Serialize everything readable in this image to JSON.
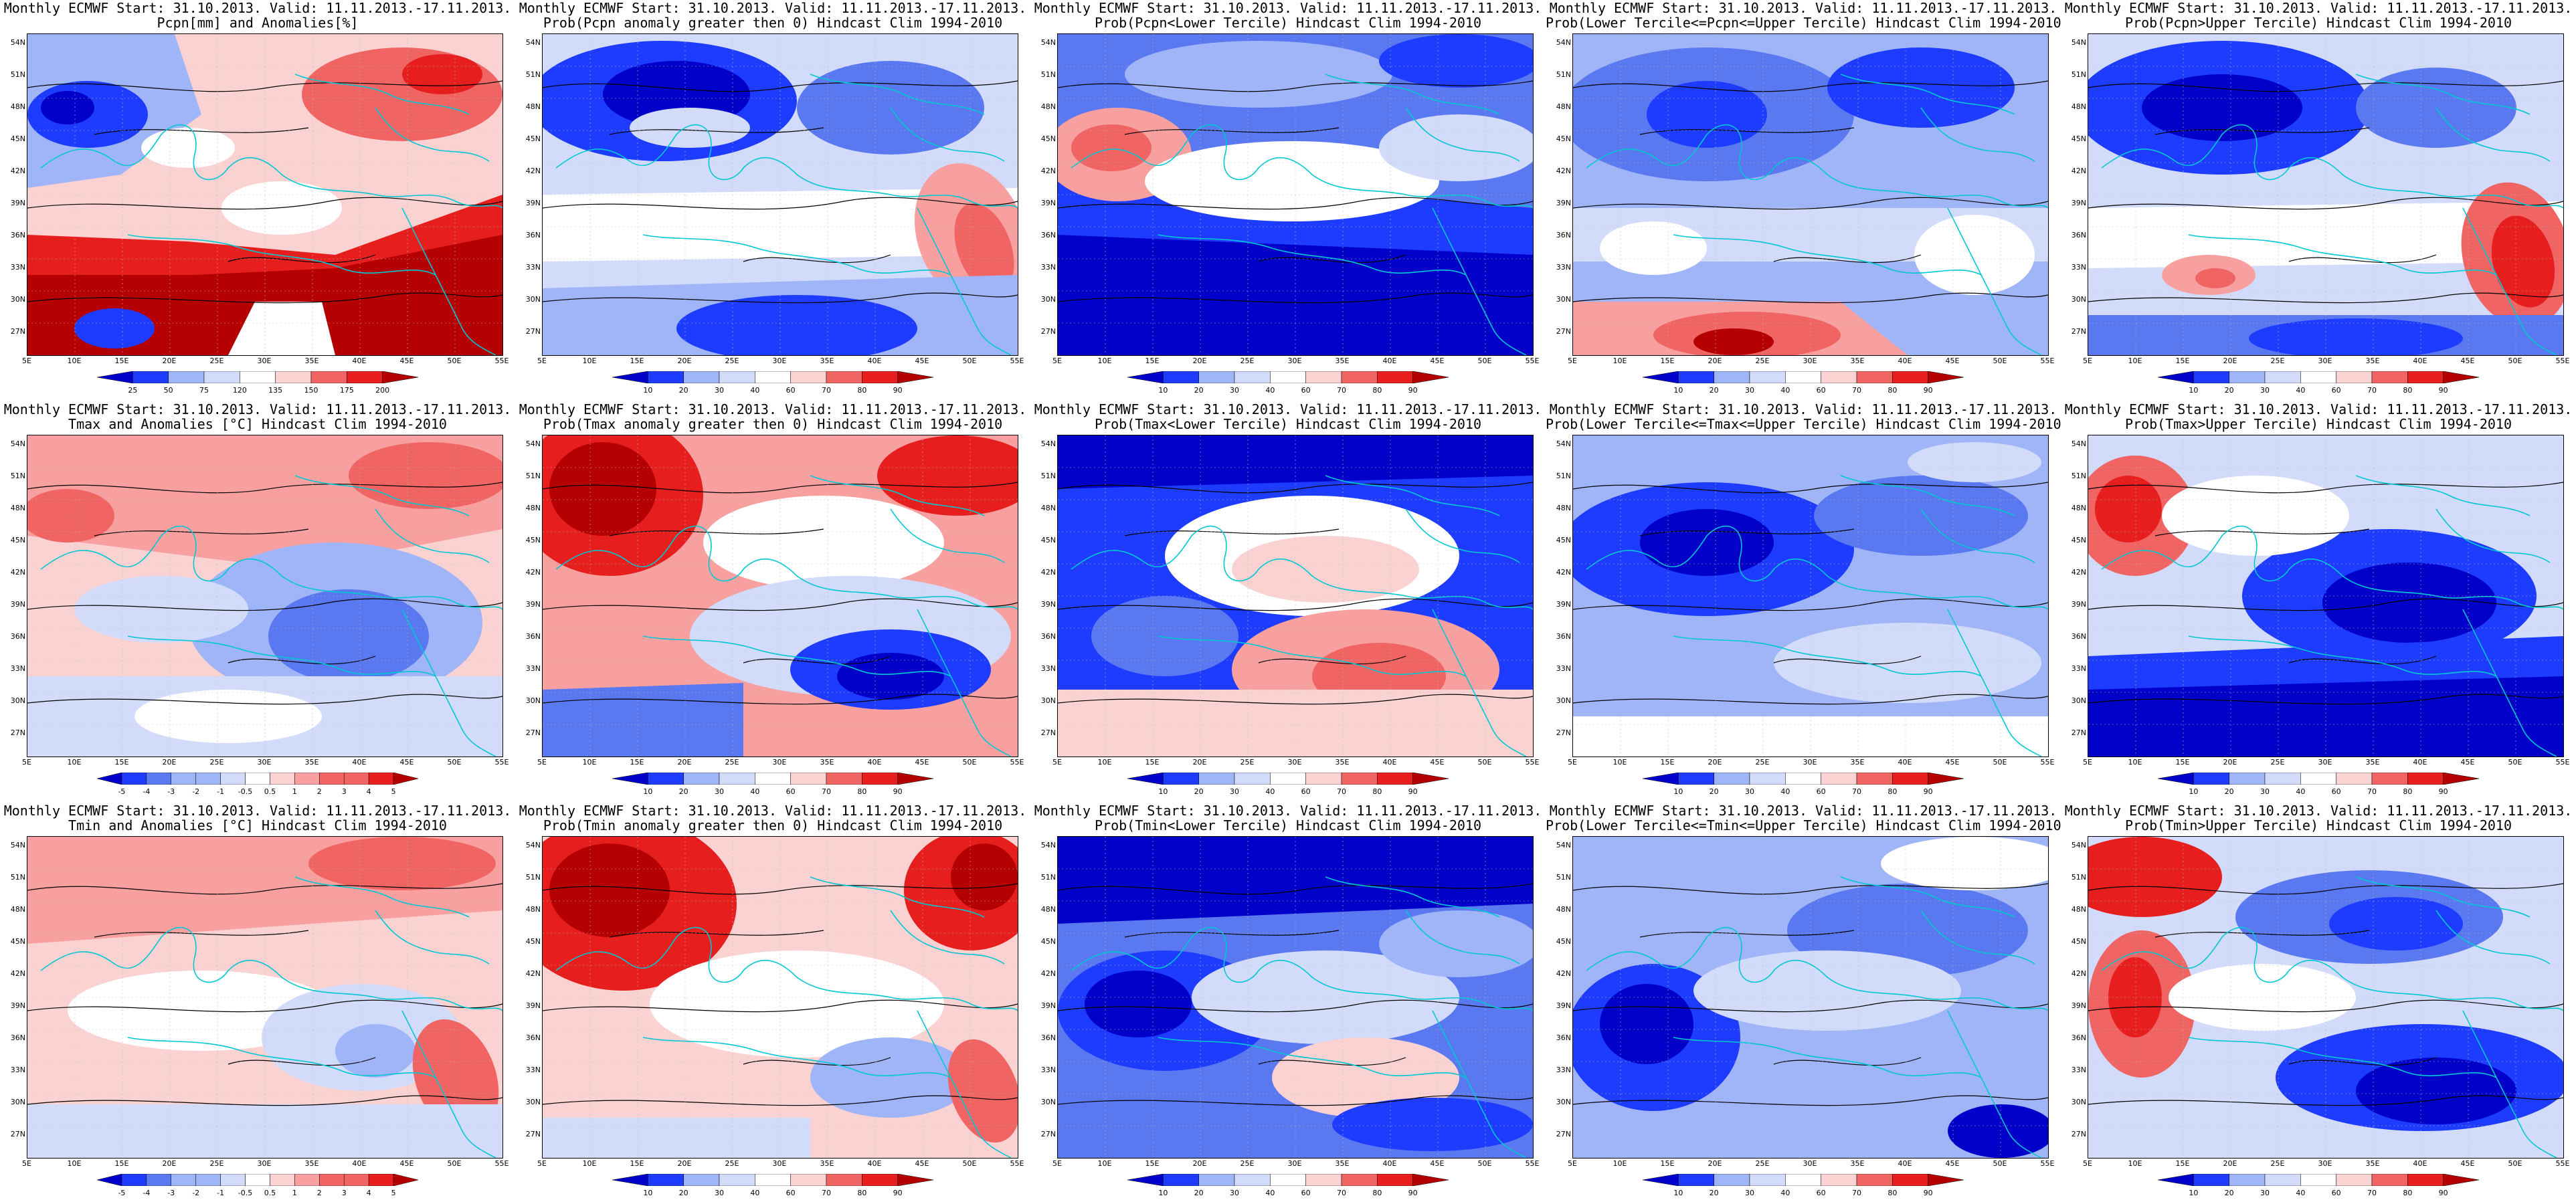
{
  "axes": {
    "lat_labels": [
      "54N",
      "51N",
      "48N",
      "45N",
      "42N",
      "39N",
      "36N",
      "33N",
      "30N",
      "27N"
    ],
    "lon_labels": [
      "5E",
      "10E",
      "15E",
      "20E",
      "25E",
      "30E",
      "35E",
      "40E",
      "45E",
      "50E",
      "55E"
    ],
    "lat_range": [
      25.5,
      55
    ],
    "lon_range": [
      5,
      55
    ]
  },
  "colors": {
    "dark_blue": "#0000c8",
    "blue": "#1e3cff",
    "mid_blue": "#5a78f0",
    "light_blue": "#a0b4f8",
    "pale_blue": "#d2dcfa",
    "white": "#ffffff",
    "pale_red": "#fad2d2",
    "light_red": "#f8a0a0",
    "mid_red": "#f06464",
    "red": "#e61e1e",
    "dark_red": "#b40000",
    "coastline": "#00c8d2",
    "contour": "#000000"
  },
  "panels": [
    {
      "title_line1": "Monthly ECMWF Start: 31.10.2013. Valid: 11.11.2013.-17.11.2013.",
      "title_line2": "Pcpn[mm] and Anomalies[%]",
      "colorbar": [
        "25",
        "50",
        "75",
        "120",
        "135",
        "150",
        "175",
        "200"
      ],
      "pattern": "precip-anomaly"
    },
    {
      "title_line1": "Monthly ECMWF Start: 31.10.2013. Valid: 11.11.2013.-17.11.2013.",
      "title_line2": "Prob(Pcpn anomaly greater then 0) Hindcast Clim 1994-2010",
      "colorbar": [
        "10",
        "20",
        "30",
        "40",
        "60",
        "70",
        "80",
        "90"
      ],
      "pattern": "precip-prob-above-zero"
    },
    {
      "title_line1": "Monthly ECMWF Start: 31.10.2013. Valid: 11.11.2013.-17.11.2013.",
      "title_line2": "Prob(Pcpn<Lower Tercile) Hindcast Clim 1994-2010",
      "colorbar": [
        "10",
        "20",
        "30",
        "40",
        "60",
        "70",
        "80",
        "90"
      ],
      "pattern": "precip-prob-lower"
    },
    {
      "title_line1": "Monthly ECMWF Start: 31.10.2013. Valid: 11.11.2013.-17.11.2013.",
      "title_line2": "Prob(Lower Tercile<=Pcpn<=Upper Tercile) Hindcast Clim 1994-2010",
      "colorbar": [
        "10",
        "20",
        "30",
        "40",
        "60",
        "70",
        "80",
        "90"
      ],
      "pattern": "precip-prob-middle"
    },
    {
      "title_line1": "Monthly ECMWF Start: 31.10.2013. Valid: 11.11.2013.-17.11.2013.",
      "title_line2": "Prob(Pcpn>Upper Tercile) Hindcast Clim 1994-2010",
      "colorbar": [
        "10",
        "20",
        "30",
        "40",
        "60",
        "70",
        "80",
        "90"
      ],
      "pattern": "precip-prob-upper"
    },
    {
      "title_line1": "Monthly ECMWF Start: 31.10.2013. Valid: 11.11.2013.-17.11.2013.",
      "title_line2": "Tmax and Anomalies [°C] Hindcast Clim 1994-2010",
      "colorbar": [
        "-5",
        "-4",
        "-3",
        "-2",
        "-1",
        "-0.5",
        "0.5",
        "1",
        "2",
        "3",
        "4",
        "5"
      ],
      "pattern": "tmax-anomaly"
    },
    {
      "title_line1": "Monthly ECMWF Start: 31.10.2013. Valid: 11.11.2013.-17.11.2013.",
      "title_line2": "Prob(Tmax anomaly greater then 0) Hindcast Clim 1994-2010",
      "colorbar": [
        "10",
        "20",
        "30",
        "40",
        "60",
        "70",
        "80",
        "90"
      ],
      "pattern": "tmax-prob-above-zero"
    },
    {
      "title_line1": "Monthly ECMWF Start: 31.10.2013. Valid: 11.11.2013.-17.11.2013.",
      "title_line2": "Prob(Tmax<Lower Tercile) Hindcast Clim 1994-2010",
      "colorbar": [
        "10",
        "20",
        "30",
        "40",
        "60",
        "70",
        "80",
        "90"
      ],
      "pattern": "tmax-prob-lower"
    },
    {
      "title_line1": "Monthly ECMWF Start: 31.10.2013. Valid: 11.11.2013.-17.11.2013.",
      "title_line2": "Prob(Lower Tercile<=Tmax<=Upper Tercile) Hindcast Clim 1994-2010",
      "colorbar": [
        "10",
        "20",
        "30",
        "40",
        "60",
        "70",
        "80",
        "90"
      ],
      "pattern": "tmax-prob-middle"
    },
    {
      "title_line1": "Monthly ECMWF Start: 31.10.2013. Valid: 11.11.2013.-17.11.2013.",
      "title_line2": "Prob(Tmax>Upper Tercile) Hindcast Clim 1994-2010",
      "colorbar": [
        "10",
        "20",
        "30",
        "40",
        "60",
        "70",
        "80",
        "90"
      ],
      "pattern": "tmax-prob-upper"
    },
    {
      "title_line1": "Monthly ECMWF Start: 31.10.2013. Valid: 11.11.2013.-17.11.2013.",
      "title_line2": "Tmin and Anomalies [°C] Hindcast Clim 1994-2010",
      "colorbar": [
        "-5",
        "-4",
        "-3",
        "-2",
        "-1",
        "-0.5",
        "0.5",
        "1",
        "2",
        "3",
        "4",
        "5"
      ],
      "pattern": "tmin-anomaly"
    },
    {
      "title_line1": "Monthly ECMWF Start: 31.10.2013. Valid: 11.11.2013.-17.11.2013.",
      "title_line2": "Prob(Tmin anomaly greater then 0) Hindcast Clim 1994-2010",
      "colorbar": [
        "10",
        "20",
        "30",
        "40",
        "60",
        "70",
        "80",
        "90"
      ],
      "pattern": "tmin-prob-above-zero"
    },
    {
      "title_line1": "Monthly ECMWF Start: 31.10.2013. Valid: 11.11.2013.-17.11.2013.",
      "title_line2": "Prob(Tmin<Lower Tercile) Hindcast Clim 1994-2010",
      "colorbar": [
        "10",
        "20",
        "30",
        "40",
        "60",
        "70",
        "80",
        "90"
      ],
      "pattern": "tmin-prob-lower"
    },
    {
      "title_line1": "Monthly ECMWF Start: 31.10.2013. Valid: 11.11.2013.-17.11.2013.",
      "title_line2": "Prob(Lower Tercile<=Tmin<=Upper Tercile) Hindcast Clim 1994-2010",
      "colorbar": [
        "10",
        "20",
        "30",
        "40",
        "60",
        "70",
        "80",
        "90"
      ],
      "pattern": "tmin-prob-middle"
    },
    {
      "title_line1": "Monthly ECMWF Start: 31.10.2013. Valid: 11.11.2013.-17.11.2013.",
      "title_line2": "Prob(Tmin>Upper Tercile) Hindcast Clim 1994-2010",
      "colorbar": [
        "10",
        "20",
        "30",
        "40",
        "60",
        "70",
        "80",
        "90"
      ],
      "pattern": "tmin-prob-upper"
    }
  ]
}
